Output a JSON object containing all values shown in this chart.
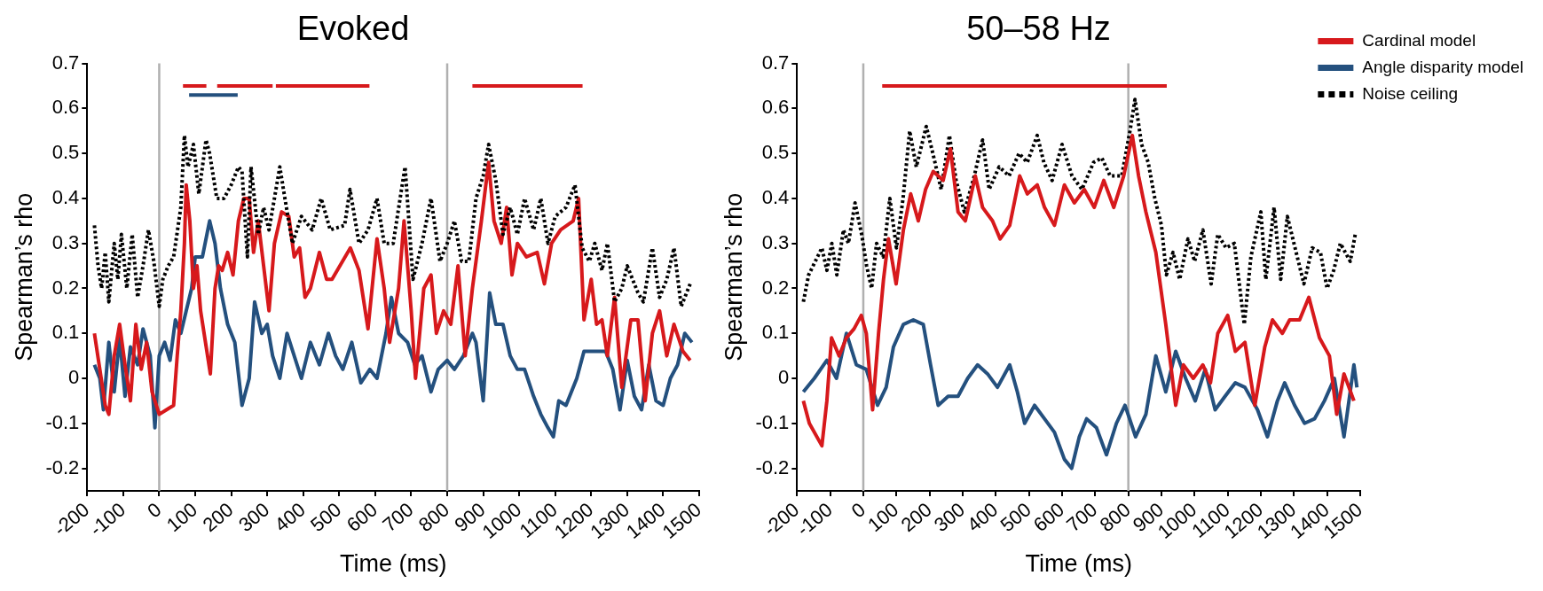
{
  "chart_data": [
    {
      "type": "line",
      "title": "Evoked",
      "xlabel": "Time (ms)",
      "ylabel": "Spearman’s rho",
      "xlim": [
        -200,
        1500
      ],
      "xticks": [
        -200,
        -100,
        0,
        100,
        200,
        300,
        400,
        500,
        600,
        700,
        800,
        900,
        1000,
        1100,
        1200,
        1300,
        1400,
        1500
      ],
      "ylim": [
        -0.25,
        0.7
      ],
      "yticks": [
        -0.2,
        -0.1,
        0,
        0.1,
        0.2,
        0.3,
        0.4,
        0.5,
        0.6,
        0.7
      ],
      "legend": false,
      "ref_lines": [
        {
          "axis": "x",
          "value": 0,
          "color": "#b0b0b0"
        },
        {
          "axis": "x",
          "value": 800,
          "color": "#b0b0b0"
        }
      ],
      "series": [
        {
          "type": "line",
          "line_style": "dotted",
          "color": "#000000",
          "x": [
            -180,
            -170,
            -160,
            -150,
            -140,
            -125,
            -115,
            -105,
            -90,
            -75,
            -60,
            -45,
            -30,
            -15,
            0,
            10,
            25,
            40,
            60,
            70,
            80,
            95,
            110,
            130,
            140,
            160,
            180,
            200,
            220,
            230,
            245,
            255,
            275,
            290,
            305,
            335,
            345,
            370,
            395,
            425,
            450,
            475,
            515,
            530,
            555,
            580,
            605,
            625,
            650,
            675,
            683,
            705,
            730,
            755,
            780,
            800,
            820,
            840,
            860,
            880,
            900,
            915,
            935,
            955,
            975,
            995,
            1015,
            1040,
            1060,
            1080,
            1100,
            1130,
            1155,
            1175,
            1195,
            1210,
            1230,
            1245,
            1265,
            1285,
            1300,
            1330,
            1345,
            1370,
            1390,
            1410,
            1430,
            1450,
            1475
          ],
          "values": [
            0.34,
            0.25,
            0.2,
            0.28,
            0.17,
            0.3,
            0.22,
            0.32,
            0.2,
            0.32,
            0.18,
            0.25,
            0.33,
            0.26,
            0.16,
            0.22,
            0.25,
            0.27,
            0.38,
            0.54,
            0.47,
            0.52,
            0.41,
            0.53,
            0.5,
            0.4,
            0.4,
            0.43,
            0.47,
            0.46,
            0.27,
            0.47,
            0.32,
            0.38,
            0.33,
            0.47,
            0.42,
            0.3,
            0.36,
            0.33,
            0.4,
            0.33,
            0.34,
            0.42,
            0.3,
            0.33,
            0.4,
            0.3,
            0.3,
            0.43,
            0.47,
            0.22,
            0.3,
            0.4,
            0.26,
            0.3,
            0.35,
            0.26,
            0.26,
            0.4,
            0.45,
            0.52,
            0.44,
            0.32,
            0.38,
            0.32,
            0.4,
            0.33,
            0.4,
            0.3,
            0.36,
            0.38,
            0.43,
            0.29,
            0.26,
            0.3,
            0.24,
            0.3,
            0.17,
            0.2,
            0.25,
            0.19,
            0.17,
            0.29,
            0.18,
            0.22,
            0.29,
            0.16,
            0.21
          ]
        },
        {
          "type": "line",
          "color": "#d7191c",
          "x": [
            -180,
            -165,
            -150,
            -140,
            -125,
            -110,
            -95,
            -80,
            -65,
            -50,
            -35,
            -20,
            0,
            20,
            40,
            50,
            60,
            70,
            75,
            85,
            95,
            105,
            115,
            142,
            155,
            165,
            175,
            190,
            205,
            220,
            235,
            250,
            262,
            275,
            290,
            305,
            320,
            340,
            360,
            375,
            390,
            405,
            420,
            445,
            465,
            480,
            531,
            555,
            580,
            605,
            625,
            640,
            665,
            680,
            700,
            712,
            735,
            755,
            770,
            790,
            810,
            830,
            850,
            870,
            895,
            915,
            930,
            950,
            965,
            980,
            995,
            1020,
            1050,
            1070,
            1090,
            1115,
            1150,
            1165,
            1180,
            1200,
            1215,
            1230,
            1245,
            1265,
            1285,
            1310,
            1330,
            1350,
            1370,
            1390,
            1410,
            1430,
            1455,
            1475
          ],
          "values": [
            0.1,
            0.02,
            -0.06,
            -0.08,
            0.05,
            0.12,
            0.03,
            -0.05,
            0.12,
            0.02,
            0.08,
            -0.03,
            -0.08,
            -0.07,
            -0.06,
            0.05,
            0.15,
            0.3,
            0.43,
            0.35,
            0.2,
            0.25,
            0.15,
            0.01,
            0.2,
            0.25,
            0.24,
            0.28,
            0.23,
            0.35,
            0.4,
            0.4,
            0.28,
            0.35,
            0.25,
            0.15,
            0.3,
            0.37,
            0.36,
            0.27,
            0.29,
            0.18,
            0.2,
            0.28,
            0.22,
            0.22,
            0.29,
            0.24,
            0.11,
            0.31,
            0.2,
            0.08,
            0.2,
            0.35,
            0.15,
            0,
            0.2,
            0.23,
            0.1,
            0.15,
            0.12,
            0.25,
            0.05,
            0.2,
            0.35,
            0.48,
            0.35,
            0.3,
            0.38,
            0.23,
            0.3,
            0.27,
            0.28,
            0.21,
            0.3,
            0.33,
            0.35,
            0.4,
            0.13,
            0.22,
            0.12,
            0.13,
            0.05,
            0.18,
            -0.02,
            0.13,
            0.13,
            -0.05,
            0.1,
            0.15,
            0.05,
            0.12,
            0.06,
            0.04
          ]
        },
        {
          "type": "line",
          "color": "#24507e",
          "x": [
            -180,
            -165,
            -155,
            -140,
            -125,
            -110,
            -95,
            -80,
            -60,
            -45,
            -25,
            -12,
            0,
            15,
            30,
            45,
            60,
            75,
            90,
            100,
            120,
            140,
            155,
            170,
            190,
            210,
            230,
            250,
            265,
            285,
            300,
            315,
            335,
            355,
            375,
            395,
            420,
            445,
            470,
            490,
            510,
            535,
            560,
            585,
            605,
            630,
            645,
            665,
            690,
            710,
            730,
            755,
            775,
            800,
            820,
            845,
            870,
            880,
            900,
            918,
            935,
            955,
            975,
            995,
            1015,
            1040,
            1060,
            1080,
            1095,
            1110,
            1130,
            1160,
            1180,
            1210,
            1240,
            1260,
            1280,
            1300,
            1320,
            1340,
            1360,
            1380,
            1400,
            1420,
            1440,
            1460,
            1480
          ],
          "values": [
            0.03,
            0,
            -0.07,
            0.08,
            -0.03,
            0.09,
            -0.04,
            0.07,
            0.03,
            0.11,
            0.05,
            -0.11,
            0.05,
            0.08,
            0.04,
            0.13,
            0.1,
            0.15,
            0.2,
            0.27,
            0.27,
            0.35,
            0.3,
            0.2,
            0.12,
            0.08,
            -0.06,
            0,
            0.17,
            0.1,
            0.12,
            0.05,
            0,
            0.1,
            0.05,
            0,
            0.08,
            0.03,
            0.1,
            0.05,
            0.02,
            0.08,
            -0.01,
            0.02,
            0,
            0.1,
            0.18,
            0.1,
            0.08,
            0.03,
            0.05,
            -0.03,
            0.02,
            0.04,
            0.02,
            0.05,
            0.1,
            0.08,
            -0.05,
            0.19,
            0.12,
            0.12,
            0.05,
            0.02,
            0.02,
            -0.04,
            -0.08,
            -0.11,
            -0.13,
            -0.05,
            -0.06,
            0,
            0.06,
            0.06,
            0.06,
            0.02,
            -0.07,
            0.04,
            -0.04,
            -0.07,
            0.03,
            -0.05,
            -0.06,
            0,
            0.03,
            0.1,
            0.08
          ]
        },
        {
          "type": "line",
          "color": "#d7191c",
          "x": [
            66,
            131
          ],
          "values": [
            0.65,
            0.65
          ]
        },
        {
          "type": "line",
          "color": "#d7191c",
          "x": [
            161,
            315
          ],
          "values": [
            0.65,
            0.65
          ]
        },
        {
          "type": "line",
          "color": "#d7191c",
          "x": [
            324,
            584
          ],
          "values": [
            0.65,
            0.65
          ]
        },
        {
          "type": "line",
          "color": "#d7191c",
          "x": [
            870,
            1176
          ],
          "values": [
            0.65,
            0.65
          ]
        },
        {
          "type": "line",
          "color": "#24507e",
          "x": [
            83,
            218
          ],
          "values": [
            0.63,
            0.63
          ]
        }
      ]
    },
    {
      "type": "line",
      "title": "50–58 Hz",
      "xlabel": "Time (ms)",
      "ylabel": "Spearman’s rho",
      "xlim": [
        -200,
        1500
      ],
      "xticks": [
        -200,
        -100,
        0,
        100,
        200,
        300,
        400,
        500,
        600,
        700,
        800,
        900,
        1000,
        1100,
        1200,
        1300,
        1400,
        1500
      ],
      "ylim": [
        -0.25,
        0.7
      ],
      "yticks": [
        -0.2,
        -0.1,
        0,
        0.1,
        0.2,
        0.3,
        0.4,
        0.5,
        0.6,
        0.7
      ],
      "legend": "top right",
      "ref_lines": [
        {
          "axis": "x",
          "value": 0,
          "color": "#b0b0b0"
        },
        {
          "axis": "x",
          "value": 800,
          "color": "#b0b0b0"
        }
      ],
      "series": [
        {
          "name": "Cardinal model",
          "type": "line",
          "color": "#d7191c",
          "x": [
            -181,
            -163,
            -125,
            -110,
            -96,
            -73,
            -51,
            -28,
            -6,
            9,
            28,
            46,
            61,
            76,
            99,
            121,
            143,
            166,
            188,
            211,
            241,
            263,
            286,
            308,
            338,
            360,
            390,
            413,
            442,
            472,
            495,
            525,
            547,
            577,
            607,
            637,
            667,
            697,
            726,
            756,
            786,
            812,
            831,
            853,
            883,
            913,
            943,
            966,
            996,
            1025,
            1048,
            1070,
            1100,
            1123,
            1152,
            1182,
            1212,
            1235,
            1265,
            1287,
            1317,
            1345,
            1377,
            1407,
            1429,
            1451,
            1481
          ],
          "values": [
            -0.05,
            -0.1,
            -0.15,
            -0.05,
            0.09,
            0.05,
            0.09,
            0.11,
            0.14,
            0.1,
            -0.07,
            0.1,
            0.22,
            0.31,
            0.21,
            0.33,
            0.41,
            0.35,
            0.42,
            0.46,
            0.44,
            0.51,
            0.37,
            0.35,
            0.45,
            0.38,
            0.35,
            0.31,
            0.34,
            0.45,
            0.41,
            0.43,
            0.38,
            0.34,
            0.43,
            0.39,
            0.42,
            0.38,
            0.44,
            0.38,
            0.45,
            0.54,
            0.45,
            0.37,
            0.28,
            0.12,
            -0.06,
            0.03,
            0,
            0.03,
            -0.01,
            0.1,
            0.14,
            0.06,
            0.08,
            -0.06,
            0.07,
            0.13,
            0.1,
            0.13,
            0.13,
            0.18,
            0.09,
            0.05,
            -0.08,
            0.01,
            -0.05
          ]
        },
        {
          "name": "Angle disparity model",
          "type": "line",
          "color": "#24507e",
          "x": [
            -181,
            -148,
            -110,
            -81,
            -51,
            -21,
            9,
            43,
            69,
            91,
            121,
            151,
            181,
            203,
            226,
            256,
            286,
            315,
            345,
            375,
            405,
            442,
            465,
            487,
            517,
            547,
            577,
            607,
            629,
            652,
            674,
            704,
            734,
            764,
            790,
            822,
            853,
            883,
            913,
            943,
            973,
            1002,
            1032,
            1062,
            1092,
            1123,
            1152,
            1190,
            1220,
            1250,
            1272,
            1302,
            1332,
            1362,
            1392,
            1422,
            1451,
            1481,
            1490
          ],
          "values": [
            -0.03,
            0,
            0.04,
            0,
            0.1,
            0.03,
            0.02,
            -0.06,
            -0.02,
            0.07,
            0.12,
            0.13,
            0.12,
            0.03,
            -0.06,
            -0.04,
            -0.04,
            0,
            0.03,
            0.01,
            -0.02,
            0.03,
            -0.03,
            -0.1,
            -0.06,
            -0.09,
            -0.12,
            -0.18,
            -0.2,
            -0.13,
            -0.09,
            -0.11,
            -0.17,
            -0.1,
            -0.06,
            -0.13,
            -0.08,
            0.05,
            -0.03,
            0.06,
            0,
            -0.05,
            0.02,
            -0.07,
            -0.04,
            -0.01,
            -0.02,
            -0.07,
            -0.13,
            -0.05,
            -0.01,
            -0.06,
            -0.1,
            -0.09,
            -0.05,
            0,
            -0.13,
            0.03,
            -0.02
          ]
        },
        {
          "name": "Noise ceiling",
          "type": "line",
          "line_style": "dotted",
          "color": "#000000",
          "x": [
            -181,
            -165,
            -145,
            -125,
            -110,
            -95,
            -80,
            -60,
            -45,
            -25,
            -5,
            10,
            25,
            40,
            60,
            80,
            100,
            120,
            140,
            160,
            190,
            210,
            235,
            260,
            280,
            305,
            335,
            360,
            380,
            410,
            440,
            470,
            495,
            525,
            545,
            570,
            600,
            630,
            660,
            695,
            720,
            745,
            780,
            805,
            820,
            840,
            860,
            880,
            900,
            915,
            935,
            955,
            980,
            1000,
            1025,
            1050,
            1070,
            1095,
            1120,
            1150,
            1170,
            1200,
            1215,
            1240,
            1260,
            1280,
            1300,
            1330,
            1355,
            1380,
            1400,
            1420,
            1440,
            1470,
            1485
          ],
          "values": [
            0.17,
            0.23,
            0.26,
            0.29,
            0.24,
            0.3,
            0.23,
            0.33,
            0.3,
            0.39,
            0.32,
            0.25,
            0.2,
            0.3,
            0.27,
            0.4,
            0.29,
            0.4,
            0.55,
            0.47,
            0.56,
            0.5,
            0.42,
            0.54,
            0.44,
            0.37,
            0.45,
            0.53,
            0.42,
            0.47,
            0.45,
            0.5,
            0.48,
            0.54,
            0.48,
            0.44,
            0.52,
            0.45,
            0.42,
            0.48,
            0.49,
            0.45,
            0.45,
            0.55,
            0.62,
            0.52,
            0.48,
            0.4,
            0.34,
            0.23,
            0.28,
            0.22,
            0.31,
            0.26,
            0.33,
            0.21,
            0.32,
            0.29,
            0.3,
            0.12,
            0.27,
            0.37,
            0.22,
            0.38,
            0.22,
            0.36,
            0.3,
            0.21,
            0.29,
            0.28,
            0.2,
            0.24,
            0.3,
            0.26,
            0.32
          ]
        },
        {
          "type": "line",
          "color": "#d7191c",
          "x": [
            57,
            916
          ],
          "values": [
            0.65,
            0.65
          ]
        }
      ]
    }
  ]
}
